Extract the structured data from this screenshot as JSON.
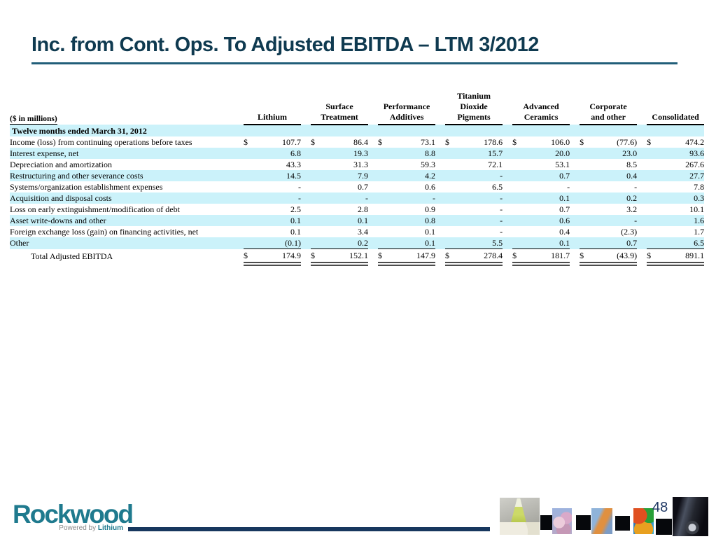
{
  "slide": {
    "title": "Inc. from Cont. Ops. To Adjusted EBITDA – LTM 3/2012",
    "page_number": "48"
  },
  "table": {
    "unit_label": "($ in millions)",
    "period_label": "Twelve months ended March 31, 2012",
    "columns": [
      "Lithium",
      "Surface\nTreatment",
      "Performance\nAdditives",
      "Titanium\nDioxide\nPigments",
      "Advanced\nCeramics",
      "Corporate\nand other",
      "Consolidated"
    ],
    "rows": [
      {
        "label": "Income (loss) from continuing operations before taxes",
        "dollar": true,
        "values": [
          "107.7",
          "86.4",
          "73.1",
          "178.6",
          "106.0",
          "(77.6)",
          "474.2"
        ]
      },
      {
        "label": "Interest expense, net",
        "values": [
          "6.8",
          "19.3",
          "8.8",
          "15.7",
          "20.0",
          "23.0",
          "93.6"
        ]
      },
      {
        "label": "Depreciation and amortization",
        "values": [
          "43.3",
          "31.3",
          "59.3",
          "72.1",
          "53.1",
          "8.5",
          "267.6"
        ]
      },
      {
        "label": "Restructuring and other severance costs",
        "values": [
          "14.5",
          "7.9",
          "4.2",
          "-",
          "0.7",
          "0.4",
          "27.7"
        ]
      },
      {
        "label": "Systems/organization establishment expenses",
        "values": [
          "-",
          "0.7",
          "0.6",
          "6.5",
          "-",
          "-",
          "7.8"
        ]
      },
      {
        "label": "Acquisition and disposal costs",
        "values": [
          "-",
          "-",
          "-",
          "-",
          "0.1",
          "0.2",
          "0.3"
        ]
      },
      {
        "label": "Loss on early extinguishment/modification of debt",
        "values": [
          "2.5",
          "2.8",
          "0.9",
          "-",
          "0.7",
          "3.2",
          "10.1"
        ]
      },
      {
        "label": "Asset write-downs and other",
        "values": [
          "0.1",
          "0.1",
          "0.8",
          "-",
          "0.6",
          "-",
          "1.6"
        ]
      },
      {
        "label": "Foreign exchange loss (gain) on financing activities, net",
        "values": [
          "0.1",
          "3.4",
          "0.1",
          "-",
          "0.4",
          "(2.3)",
          "1.7"
        ]
      },
      {
        "label": "Other",
        "underline": true,
        "values": [
          "(0.1)",
          "0.2",
          "0.1",
          "5.5",
          "0.1",
          "0.7",
          "6.5"
        ]
      }
    ],
    "total_row": {
      "label": "Total Adjusted EBITDA",
      "dollar": true,
      "values": [
        "174.9",
        "152.1",
        "147.9",
        "278.4",
        "181.7",
        "(43.9)",
        "891.1"
      ]
    }
  },
  "footer": {
    "logo_text": "Rockwood",
    "tagline_prefix": "Powered by ",
    "tagline_brand": "Lithium"
  },
  "colors": {
    "title_text": "#0F3A50",
    "title_underline": "#215E79",
    "band_cyan": "#CBF2FA",
    "accent_line_navy": "#17375E",
    "logo_teal": "#1F7A8E",
    "page_number_blue": "#1F3864"
  },
  "icons": [
    "flask-thumbnail",
    "pigment-balls-thumbnail",
    "fabric-thumbnail",
    "abstract-pigments-thumbnail",
    "car-thumbnail",
    "separator-square"
  ]
}
